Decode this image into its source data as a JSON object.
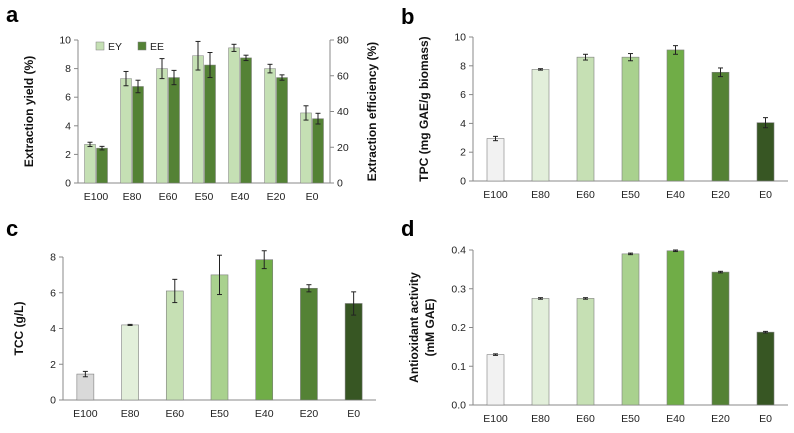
{
  "figure": {
    "panels": [
      {
        "letter": "a"
      },
      {
        "letter": "b"
      },
      {
        "letter": "c"
      },
      {
        "letter": "d"
      }
    ]
  },
  "chart_data": [
    {
      "id": "a",
      "type": "bar",
      "categories": [
        "E100",
        "E80",
        "E60",
        "E50",
        "E40",
        "E20",
        "E0"
      ],
      "ylabel": "Extraction yield (%)",
      "y2label": "Extraction efficiency (%)",
      "ylim": [
        0,
        10
      ],
      "yticks": [
        "0",
        "2",
        "4",
        "6",
        "8",
        "10"
      ],
      "y2lim": [
        0,
        80
      ],
      "y2ticks": [
        "0",
        "20",
        "40",
        "60",
        "80"
      ],
      "legend": "top-left",
      "series": [
        {
          "name": "EY",
          "axis": "left",
          "color": "#c5e0b4",
          "values": [
            2.7,
            7.3,
            8.0,
            8.9,
            9.45,
            8.0,
            4.9
          ],
          "errors": [
            0.15,
            0.5,
            0.7,
            1.0,
            0.25,
            0.3,
            0.5
          ]
        },
        {
          "name": "EE",
          "axis": "right",
          "color": "#548235",
          "values": [
            19.5,
            54,
            59,
            66,
            70,
            59,
            36
          ],
          "errors": [
            1.0,
            3.5,
            4.0,
            7.0,
            1.5,
            1.5,
            3.0
          ]
        }
      ]
    },
    {
      "id": "b",
      "type": "bar",
      "categories": [
        "E100",
        "E80",
        "E60",
        "E50",
        "E40",
        "E20",
        "E0"
      ],
      "ylabel": "TPC (mg GAE/g biomass)",
      "ylim": [
        0,
        10
      ],
      "yticks": [
        "0",
        "2",
        "4",
        "6",
        "8",
        "10"
      ],
      "colors": [
        "#f2f2f2",
        "#e2efda",
        "#c6e0b4",
        "#a9d18e",
        "#70ad47",
        "#548235",
        "#375623"
      ],
      "values": [
        2.95,
        7.75,
        8.6,
        8.6,
        9.1,
        7.55,
        4.05
      ],
      "errors": [
        0.15,
        0.05,
        0.2,
        0.25,
        0.3,
        0.3,
        0.35
      ]
    },
    {
      "id": "c",
      "type": "bar",
      "categories": [
        "E100",
        "E80",
        "E60",
        "E50",
        "E40",
        "E20",
        "E0"
      ],
      "ylabel": "TCC (g/L)",
      "ylim": [
        0,
        8
      ],
      "yticks": [
        "0",
        "2",
        "4",
        "6",
        "8"
      ],
      "colors": [
        "#d9d9d9",
        "#e2efda",
        "#c6e0b4",
        "#a9d18e",
        "#70ad47",
        "#548235",
        "#375623"
      ],
      "values": [
        1.45,
        4.2,
        6.1,
        7.0,
        7.85,
        6.25,
        5.4
      ],
      "errors": [
        0.15,
        0.03,
        0.65,
        1.1,
        0.5,
        0.2,
        0.65
      ]
    },
    {
      "id": "d",
      "type": "bar",
      "categories": [
        "E100",
        "E80",
        "E60",
        "E50",
        "E40",
        "E20",
        "E0"
      ],
      "ylabel": "Antioxidant activity (mM GAE)",
      "ylabel_lines": [
        "Antioxidant activity",
        "(mM GAE)"
      ],
      "ylim": [
        0,
        0.4
      ],
      "yticks": [
        "0.0",
        "0.1",
        "0.2",
        "0.3",
        "0.4"
      ],
      "colors": [
        "#f2f2f2",
        "#e2efda",
        "#c6e0b4",
        "#a9d18e",
        "#70ad47",
        "#548235",
        "#375623"
      ],
      "values": [
        0.13,
        0.275,
        0.275,
        0.39,
        0.398,
        0.343,
        0.188
      ],
      "errors": [
        0.002,
        0.002,
        0.002,
        0.002,
        0.002,
        0.002,
        0.002
      ]
    }
  ]
}
